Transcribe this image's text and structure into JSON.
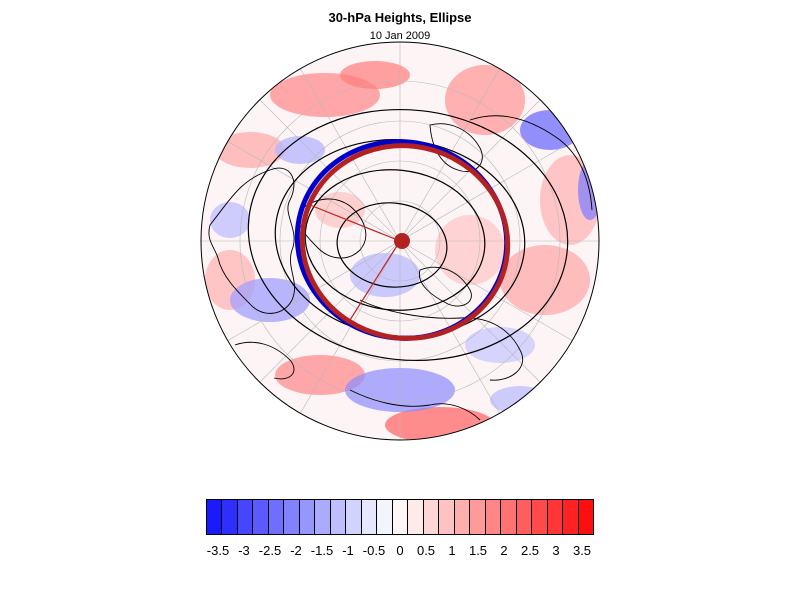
{
  "title": "30-hPa Heights, Ellipse",
  "subtitle": "10 Jan 2009",
  "colorbar": {
    "labels": [
      "-3.5",
      "-3",
      "-2.5",
      "-2",
      "-1.5",
      "-1",
      "-0.5",
      "0",
      "0.5",
      "1",
      "1.5",
      "2",
      "2.5",
      "3",
      "3.5"
    ],
    "colors": [
      "#1a1aff",
      "#2e2eff",
      "#4646ff",
      "#5a5aff",
      "#6e6eff",
      "#8282ff",
      "#9696ff",
      "#aaaaff",
      "#bebeff",
      "#d2d2ff",
      "#e6e6ff",
      "#f4f4ff",
      "#fff6f6",
      "#ffeaea",
      "#ffd6d6",
      "#ffc2c2",
      "#ffaeae",
      "#ff9a9a",
      "#ff8686",
      "#ff7272",
      "#ff5e5e",
      "#ff4a4a",
      "#ff3636",
      "#ff2222",
      "#ff0e0e"
    ]
  },
  "map": {
    "projection": "polar stereographic, north pole",
    "ellipse_colors": {
      "analysis": "#b22222",
      "fit": "#0000cc",
      "contours": "#000000",
      "axes": "#c02020"
    }
  }
}
